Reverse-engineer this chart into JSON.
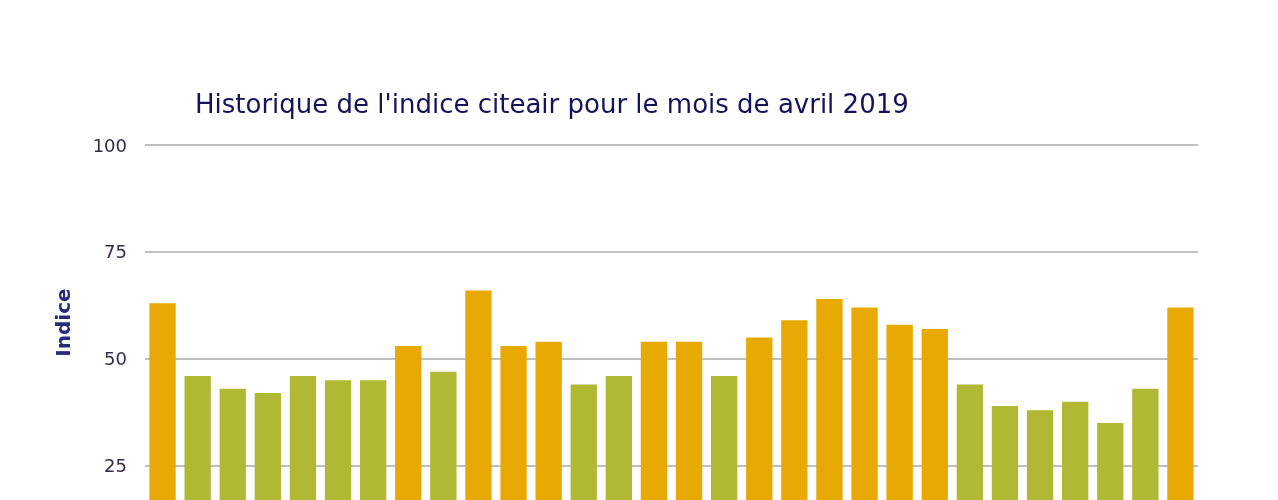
{
  "chart_data": {
    "type": "bar",
    "title": "Historique de l'indice citeair pour le mois de avril 2019",
    "ylabel": "Indice",
    "categories": [
      null,
      null,
      null,
      null,
      null,
      null,
      null,
      null,
      null,
      null,
      null,
      null,
      null,
      null,
      null,
      null,
      null,
      null,
      null,
      null,
      null,
      null,
      null,
      null,
      null,
      null,
      null,
      null,
      null,
      null
    ],
    "values": [
      63,
      46,
      43,
      42,
      46,
      45,
      45,
      53,
      47,
      66,
      53,
      54,
      44,
      46,
      54,
      54,
      46,
      55,
      59,
      64,
      62,
      58,
      57,
      44,
      39,
      38,
      40,
      35,
      43,
      62
    ],
    "colors": [
      "#e8a902",
      "#b0b834",
      "#b0b834",
      "#b0b834",
      "#b0b834",
      "#b0b834",
      "#b0b834",
      "#e8a902",
      "#b0b834",
      "#e8a902",
      "#e8a902",
      "#e8a902",
      "#b0b834",
      "#b0b834",
      "#e8a902",
      "#e8a902",
      "#b0b834",
      "#e8a902",
      "#e8a902",
      "#e8a902",
      "#e8a902",
      "#e8a902",
      "#e8a902",
      "#b0b834",
      "#b0b834",
      "#b0b834",
      "#b0b834",
      "#b0b834",
      "#b0b834",
      "#e8a902"
    ],
    "ylim": [
      17,
      100
    ],
    "yticks": [
      25,
      50,
      75,
      100
    ],
    "grid": "y",
    "tick_labels": "y"
  }
}
